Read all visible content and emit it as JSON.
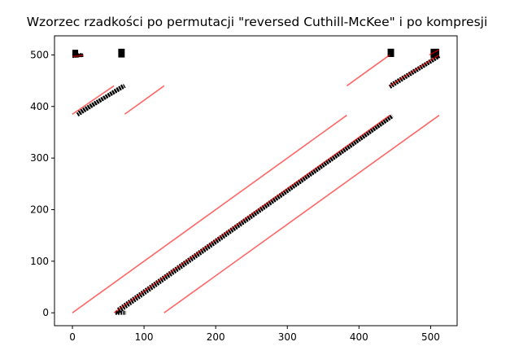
{
  "chart_data": {
    "type": "scatter",
    "title": "Wzorzec rzadkości po permutacji \"reversed Cuthill-McKee\" i po kompresji",
    "xlabel": "",
    "ylabel": "",
    "xlim": [
      -25,
      537
    ],
    "ylim": [
      -25,
      537
    ],
    "xticks": [
      "0",
      "100",
      "200",
      "300",
      "400",
      "500"
    ],
    "yticks": [
      "0",
      "100",
      "200",
      "300",
      "400",
      "500"
    ],
    "grid": false,
    "legend": "none",
    "colors": {
      "main": "#000000",
      "compressed": "#ff0000"
    },
    "series": [
      {
        "role": "main",
        "segments": [
          {
            "x": [
              60,
              75
            ],
            "y": [
              0,
              0
            ]
          },
          {
            "x": [
              62,
              445
            ],
            "y": [
              0,
              380
            ]
          },
          {
            "x": [
              64,
              447
            ],
            "y": [
              6,
              382
            ]
          },
          {
            "x": [
              7,
              71
            ],
            "y": [
              384,
              440
            ]
          },
          {
            "x": [
              9,
              73
            ],
            "y": [
              388,
              440
            ]
          },
          {
            "x": [
              443,
              510
            ],
            "y": [
              438,
              496
            ]
          },
          {
            "x": [
              445,
              512
            ],
            "y": [
              442,
              498
            ]
          },
          {
            "x": [
              0,
              15
            ],
            "y": [
              498,
              500
            ]
          }
        ],
        "blocks": [
          {
            "x": [
              0,
              8
            ],
            "y": [
              495,
              510
            ]
          },
          {
            "x": [
              8,
              15
            ],
            "y": [
              496,
              502
            ]
          },
          {
            "x": [
              64,
              73
            ],
            "y": [
              495,
              512
            ]
          },
          {
            "x": [
              440,
              449
            ],
            "y": [
              496,
              512
            ]
          },
          {
            "x": [
              500,
              512
            ],
            "y": [
              494,
              512
            ]
          }
        ]
      },
      {
        "role": "compressed",
        "segments": [
          {
            "x": [
              0,
              383
            ],
            "y": [
              0,
              383
            ]
          },
          {
            "x": [
              58,
              443
            ],
            "y": [
              0,
              383
            ]
          },
          {
            "x": [
              128,
              512
            ],
            "y": [
              0,
              383
            ]
          },
          {
            "x": [
              0,
              58
            ],
            "y": [
              385,
              440
            ]
          },
          {
            "x": [
              73,
              128
            ],
            "y": [
              385,
              440
            ]
          },
          {
            "x": [
              383,
              443
            ],
            "y": [
              440,
              500
            ]
          },
          {
            "x": [
              443,
              512
            ],
            "y": [
              440,
              500
            ]
          },
          {
            "x": [
              498,
              512
            ],
            "y": [
              500,
              510
            ]
          },
          {
            "x": [
              0,
              15
            ],
            "y": [
              497,
              499
            ]
          }
        ]
      }
    ]
  }
}
